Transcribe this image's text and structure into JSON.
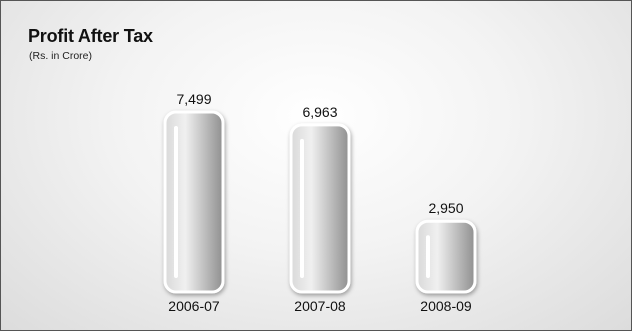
{
  "chart_data": {
    "type": "bar",
    "title": "Profit After Tax",
    "subtitle": "(Rs. in Crore)",
    "categories": [
      "2006-07",
      "2007-08",
      "2008-09"
    ],
    "values": [
      7499,
      6963,
      2950
    ],
    "value_labels": [
      "7,499",
      "6,963",
      "2,950"
    ],
    "xlabel": "",
    "ylabel": "",
    "grid": false,
    "legend": "none",
    "colors": {
      "bar_fill_light": "#eeeeee",
      "bar_fill_dark": "#8e8e8e",
      "bar_border": "#ffffff",
      "highlight": "#ffffff"
    }
  }
}
